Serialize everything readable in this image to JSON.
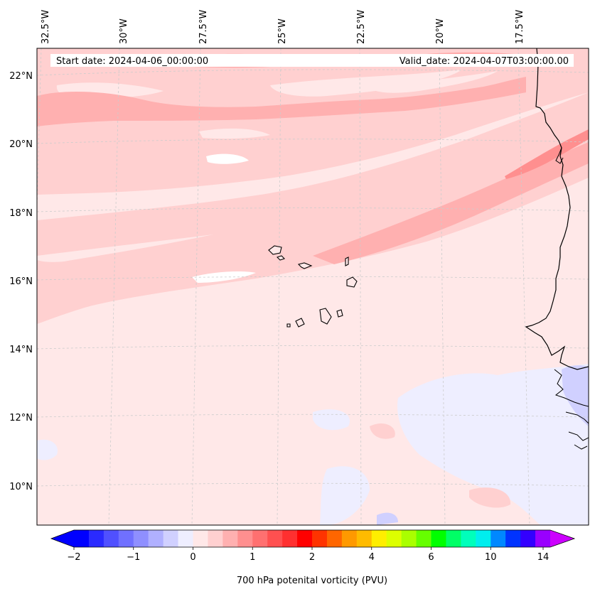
{
  "map": {
    "start_date": "Start date: 2024-04-06_00:00:00",
    "valid_date": "Valid_date: 2024-04-07T03:00:00.00",
    "lon_labels": [
      "32.5°W",
      "30°W",
      "27.5°W",
      "25°W",
      "22.5°W",
      "20°W",
      "17.5°W"
    ],
    "lat_labels": [
      "22°N",
      "20°N",
      "18°N",
      "16°N",
      "14°N",
      "12°N",
      "10°N"
    ]
  },
  "colorbar": {
    "label": "700 hPa potenital vorticity (PVU)",
    "tick_labels": [
      "−2",
      "−1",
      "0",
      "1",
      "2",
      "4",
      "6",
      "10",
      "14"
    ],
    "colors": [
      "#0000ff",
      "#2a2aff",
      "#5050ff",
      "#7070ff",
      "#8f8fff",
      "#b0b0ff",
      "#d0d0ff",
      "#eeeeff",
      "#ffe8e8",
      "#ffd0d0",
      "#ffb0b0",
      "#ff8f8f",
      "#ff7070",
      "#ff5050",
      "#ff3030",
      "#ff0000",
      "#ff3300",
      "#ff6600",
      "#ff9900",
      "#ffbb00",
      "#ffee00",
      "#ddff00",
      "#aaff00",
      "#66ff00",
      "#00ff00",
      "#00ff66",
      "#00ffbb",
      "#00eeee",
      "#0088ff",
      "#0033ff",
      "#3300ff",
      "#9900ff"
    ]
  },
  "colors": {
    "base": "#ffe8e8",
    "light_pink": "#ffd0d0",
    "mid_pink": "#ffb0b0",
    "dark_pink": "#ff8f8f",
    "very_light_blue": "#eeeeff",
    "light_blue": "#d0d0ff"
  }
}
